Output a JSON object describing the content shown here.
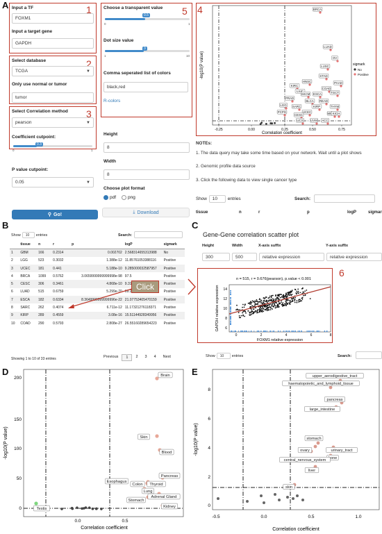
{
  "letters": {
    "a": "A",
    "b": "B",
    "c": "C",
    "d": "D",
    "e": "E"
  },
  "panelA": {
    "box_numbers": [
      "1",
      "2",
      "3",
      "4",
      "5",
      "6"
    ],
    "tf_label": "Input a TF",
    "tf_value": "FOXM1",
    "gene_label": "Input a target gene",
    "gene_value": "GAPDH",
    "db_label": "Select database",
    "db_value": "TCGA",
    "tissue_label": "Only use normal or tumor",
    "tissue_value": "tumor",
    "method_label": "Select Correlation method",
    "method_value": "pearson",
    "coef_label": "Coefficient cutpoint:",
    "coef_ticks": [
      "0",
      "",
      "",
      "",
      "",
      "",
      "",
      "",
      "",
      "1"
    ],
    "coef_value": "0.3",
    "pval_label": "P value cutpoint:",
    "pval_value": "0.05",
    "go_label": "Go!",
    "transparent_label": "Choose a transparent value",
    "transparent_value": "0.5",
    "transparent_ticks": [
      "0",
      "1"
    ],
    "dot_label": "Dot size value",
    "dot_value": "3",
    "dot_ticks": [
      "1",
      "10"
    ],
    "colors_label": "Comma seperated list of colors",
    "colors_value": "black,red",
    "rcolors_link": "R-colors",
    "height_label": "Height",
    "height_value": "8",
    "width_label": "Width",
    "width_value": "8",
    "format_label": "Choose plot format",
    "format_pdf": "pdf",
    "format_png": "png",
    "download_label": "Download",
    "notes_title": "NOTEs:",
    "note1": "1. The data query may take some time based on your network. Wait until a plot shows",
    "note2": "2. Genomic profile data source",
    "note3": "3. Click the following data to view single cancer type",
    "show_label": "Show",
    "show_value": "10",
    "entries_label": "entries",
    "search_label": "Search:",
    "table_headers": [
      "tissue",
      "n",
      "r",
      "p",
      "logP",
      "sigmark"
    ]
  },
  "volcanoA": {
    "xlabel": "Correlation coefficient",
    "ylabel": "-log10(P value)",
    "xticks": [
      "-0.25",
      "0.00",
      "0.25",
      "0.50",
      "0.75"
    ],
    "legend_title": "sigmark",
    "legend_items": [
      "No",
      "Positive"
    ],
    "labels": [
      "BRCA",
      "LUAD",
      "OV",
      "LUSC",
      "STAD",
      "HNSC",
      "PAAD",
      "KIRC",
      "COAD",
      "TGCT",
      "LIHC",
      "SKCM",
      "ESCA",
      "PRAD",
      "BLCA",
      "READ",
      "LGG",
      "SARC",
      "KIRP",
      "THYM",
      "PCPG",
      "UCEC",
      "MESO",
      "KICH",
      "CESC",
      "UCS",
      "UVM",
      "ACC"
    ]
  },
  "panelB": {
    "show_label": "Show",
    "show_value": "10",
    "entries_label": "entries",
    "search_label": "Search:",
    "headers": [
      "",
      "tissue",
      "n",
      "r",
      "p",
      "logP",
      "sigmark"
    ],
    "rows": [
      [
        "1",
        "GBM",
        "166",
        "0.2314",
        "0.002702",
        "2.568314655313988",
        "No"
      ],
      [
        "2",
        "LGG",
        "523",
        "0.3032",
        "1.388e-12",
        "11.85761053388116",
        "Positive"
      ],
      [
        "3",
        "UCEC",
        "181",
        "0.441",
        "5.188e-10",
        "9.285000032587957",
        "Positive"
      ],
      [
        "4",
        "BRCA",
        "1099",
        "0.5762",
        "3.0659999999999998e-98",
        "97.5",
        "Positive"
      ],
      [
        "5",
        "CESC",
        "306",
        "0.3461",
        "4.868e-10",
        "9.3126",
        "Positive"
      ],
      [
        "6",
        "LUAD",
        "515",
        "0.6759",
        "5.299e-70",
        "69.27588608046567",
        "Positive"
      ],
      [
        "7",
        "ESCA",
        "182",
        "0.6334",
        "8.3649999999999996e-22",
        "21.07753405470159",
        "Positive"
      ],
      [
        "8",
        "SARC",
        "262",
        "0.4074",
        "6.711e-12",
        "11.17321276118371",
        "Positive"
      ],
      [
        "9",
        "KIRP",
        "289",
        "0.4559",
        "3.08e-16",
        "15.51144928349956",
        "Positive"
      ],
      [
        "10",
        "COAD",
        "290",
        "0.5793",
        "2.808e-27",
        "26.55160289654223",
        "Positive"
      ]
    ],
    "info": "Showing 1 to 10 of 33 entries",
    "pagination": [
      "Previous",
      "1",
      "2",
      "3",
      "4",
      "Next"
    ],
    "click_label": "Click"
  },
  "panelC": {
    "title": "Gene-Gene correlation scatter plot",
    "headers": [
      "Height",
      "Width",
      "X-axis suffix",
      "Y-axis suffix"
    ],
    "values": [
      "300",
      "500",
      "relative expression",
      "relative expression"
    ],
    "stat": "n = 515, r = 0.676(pearson), p.value < 0.001",
    "xlabel": "FOXM1 relative expression",
    "ylabel": "GAPDH relative expression",
    "xticks": [
      "0",
      "2",
      "4",
      "6",
      "8"
    ],
    "yticks": [
      "6",
      "8",
      "10",
      "12",
      "14"
    ],
    "show_label": "Show",
    "show_value": "10",
    "entries_label": "entries",
    "search_label": "Search:"
  },
  "panelD": {
    "xlabel": "Correlation coefficient",
    "ylabel": "-log10(P value)",
    "xticks": [
      "0.0",
      "0.5"
    ],
    "yticks": [
      "0",
      "50",
      "100",
      "150",
      "200"
    ],
    "labels": [
      "Brain",
      "Skin",
      "Blood",
      "Pancreas",
      "Esophagus",
      "Colon",
      "Thyroid",
      "Lung",
      "Stomach",
      "Adrenal Gland",
      "Kidney",
      "Testis"
    ]
  },
  "panelE": {
    "xlabel": "Correlation coefficient",
    "ylabel": "-log10(P value)",
    "xticks": [
      "-0.5",
      "0.0",
      "0.5",
      "1.0"
    ],
    "yticks": [
      "0",
      "2",
      "4",
      "6",
      "8"
    ],
    "labels": [
      "upper_aerodigestive_tract",
      "haematopoietic_and_lymphoid_tissue",
      "pancreas",
      "large_intestine",
      "stomach",
      "urinary_tract",
      "ovary",
      "bone",
      "central_nervous_system",
      "liver",
      "skin"
    ]
  }
}
